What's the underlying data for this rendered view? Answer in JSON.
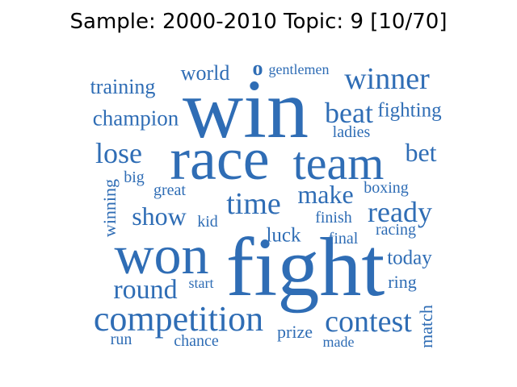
{
  "title": "Sample: 2000-2010 Topic: 9 [10/70]",
  "word_color": "#2f6db5",
  "words": [
    "win",
    "race",
    "fight",
    "won",
    "team",
    "competition",
    "contest",
    "winner",
    "beat",
    "time",
    "make",
    "ready",
    "lose",
    "bet",
    "round",
    "show",
    "champion",
    "training",
    "world",
    "fighting",
    "today",
    "luck",
    "gentlemen",
    "o",
    "ladies",
    "boxing",
    "winning",
    "great",
    "big",
    "kid",
    "finish",
    "final",
    "racing",
    "start",
    "ring",
    "prize",
    "run",
    "chance",
    "made",
    "match"
  ]
}
